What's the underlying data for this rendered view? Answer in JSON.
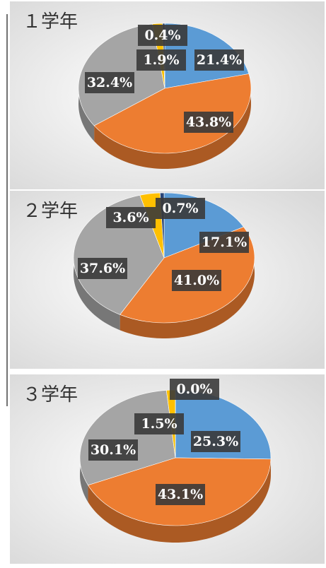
{
  "chart_data": [
    {
      "type": "pie",
      "title": "１学年",
      "values": [
        21.4,
        43.8,
        32.4,
        1.9,
        0.4
      ],
      "value_labels": [
        "21.4%",
        "43.8%",
        "32.4%",
        "1.9%",
        "0.4%"
      ],
      "colors": [
        "#5b9bd5",
        "#ed7d31",
        "#a5a5a5",
        "#ffc000",
        "#264478"
      ]
    },
    {
      "type": "pie",
      "title": "２学年",
      "values": [
        17.1,
        41.0,
        37.6,
        3.6,
        0.7
      ],
      "value_labels": [
        "17.1%",
        "41.0%",
        "37.6%",
        "3.6%",
        "0.7%"
      ],
      "colors": [
        "#5b9bd5",
        "#ed7d31",
        "#a5a5a5",
        "#ffc000",
        "#264478"
      ]
    },
    {
      "type": "pie",
      "title": "３学年",
      "values": [
        25.3,
        43.1,
        30.1,
        1.5,
        0.0
      ],
      "value_labels": [
        "25.3%",
        "43.1%",
        "30.1%",
        "1.5%",
        "0.0%"
      ],
      "colors": [
        "#5b9bd5",
        "#ed7d31",
        "#a5a5a5",
        "#ffc000",
        "#264478"
      ]
    }
  ]
}
